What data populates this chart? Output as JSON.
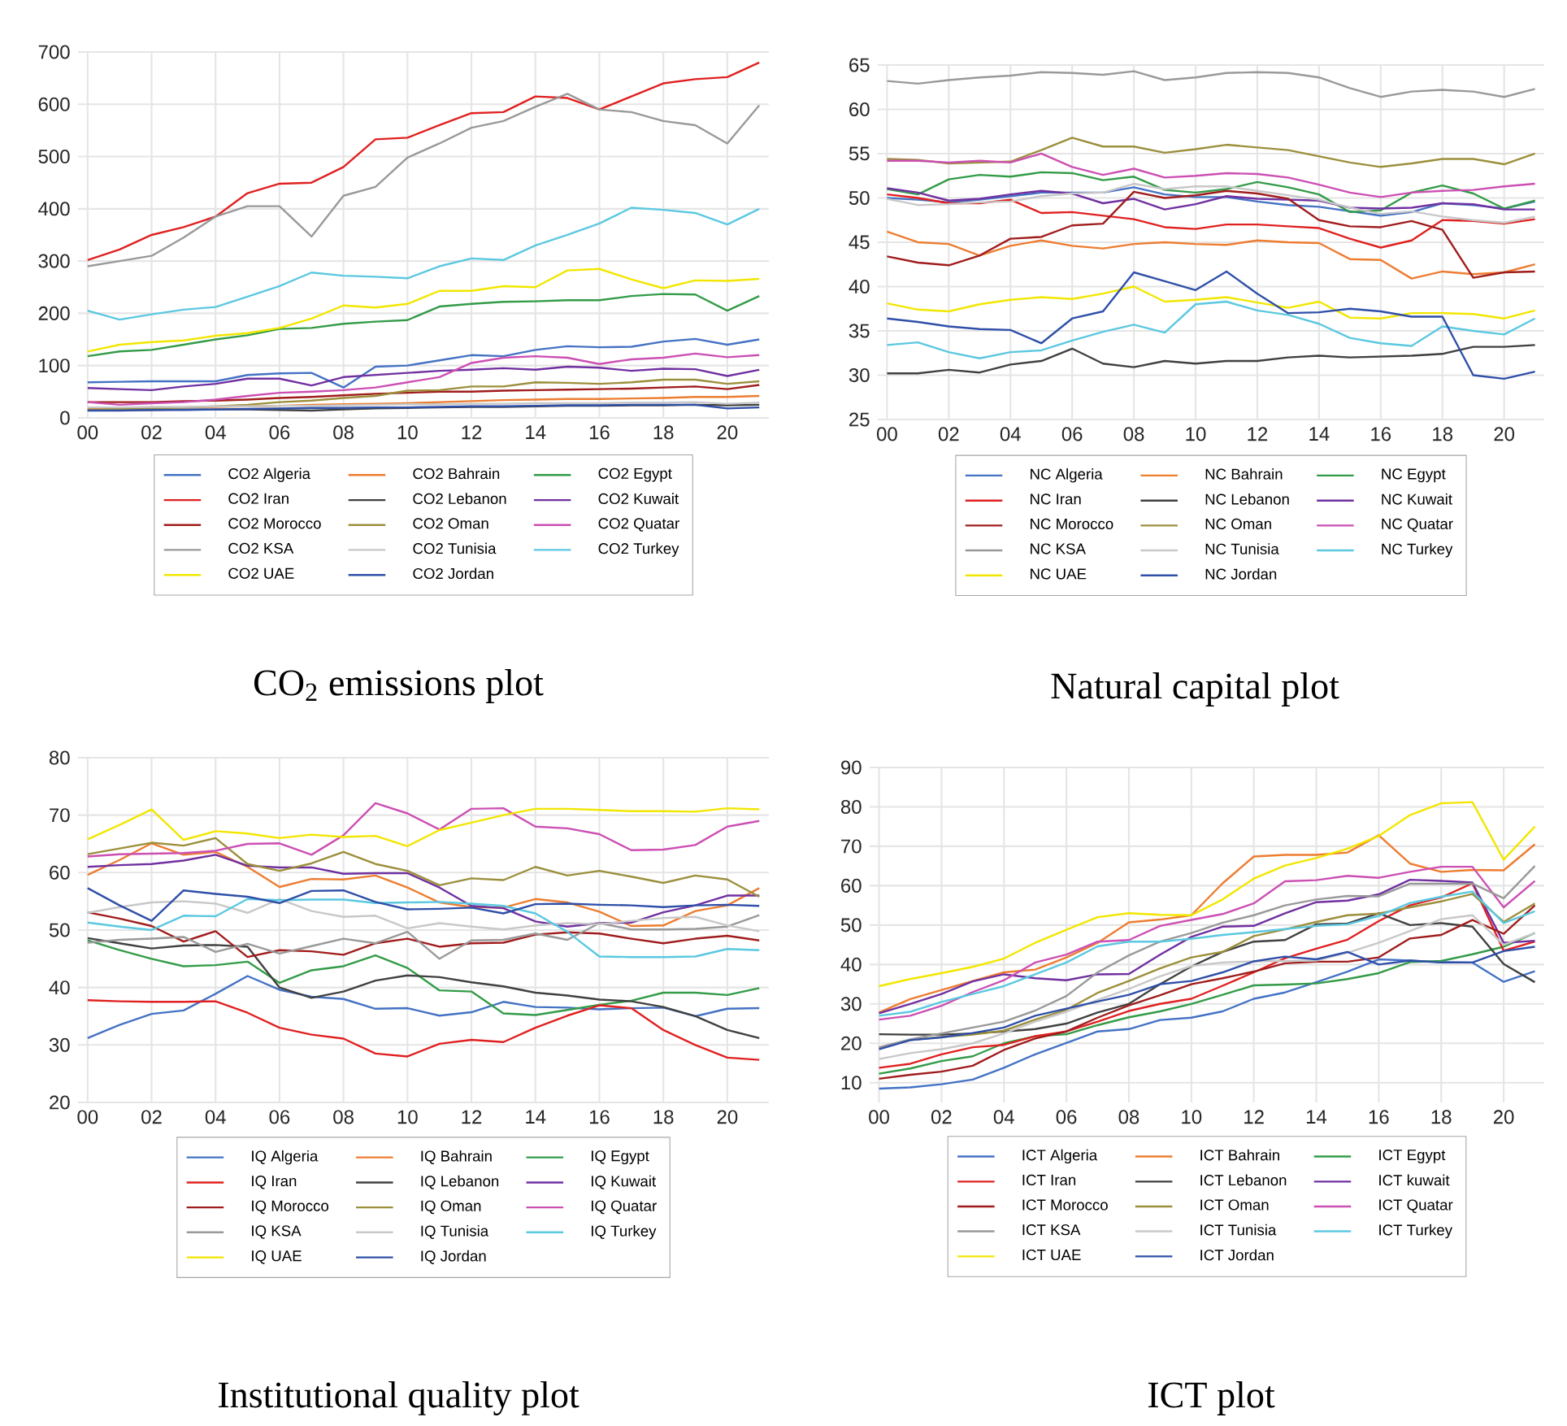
{
  "chart_data": [
    {
      "type": "line",
      "title": "CO$_{2}$ emissions plot",
      "categories": [
        "00",
        null,
        "02",
        null,
        "04",
        null,
        "06",
        null,
        "08",
        null,
        "10",
        null,
        "12",
        null,
        "14",
        null,
        "16",
        null,
        "18",
        null,
        "20",
        null
      ],
      "ylim": [
        0,
        700
      ],
      "yticks": [
        0,
        100,
        200,
        300,
        400,
        500,
        600,
        700
      ],
      "grid": true,
      "legend": "bottom",
      "series": [
        {
          "name": "CO2 Algeria",
          "color": "#4472c4",
          "values": [
            68,
            69,
            70,
            70,
            70,
            82,
            85,
            86,
            58,
            98,
            100,
            110,
            120,
            118,
            130,
            137,
            135,
            136,
            146,
            151,
            140,
            150
          ]
        },
        {
          "name": "CO2 Bahrain",
          "color": "#ed7d31",
          "values": [
            18,
            18,
            19,
            20,
            21,
            22,
            23,
            25,
            26,
            27,
            28,
            30,
            32,
            34,
            35,
            36,
            36,
            37,
            38,
            40,
            40,
            42
          ]
        },
        {
          "name": "CO2 Egypt",
          "color": "#339b48",
          "values": [
            118,
            127,
            130,
            140,
            150,
            158,
            170,
            172,
            180,
            184,
            187,
            213,
            218,
            222,
            223,
            225,
            225,
            233,
            237,
            236,
            205,
            233
          ]
        },
        {
          "name": "CO2 Iran",
          "color": "#e02020",
          "values": [
            302,
            322,
            350,
            365,
            385,
            430,
            448,
            450,
            480,
            533,
            536,
            560,
            583,
            585,
            615,
            612,
            590,
            615,
            640,
            648,
            652,
            680
          ]
        },
        {
          "name": "CO2 Lebanon",
          "color": "#404040",
          "values": [
            15,
            15,
            15,
            16,
            16,
            16,
            15,
            14,
            16,
            18,
            19,
            20,
            21,
            21,
            22,
            23,
            23,
            24,
            24,
            25,
            24,
            25
          ]
        },
        {
          "name": "CO2 Kuwait",
          "color": "#7030a0",
          "values": [
            57,
            55,
            53,
            60,
            65,
            75,
            75,
            62,
            78,
            82,
            86,
            90,
            92,
            95,
            92,
            98,
            96,
            90,
            94,
            93,
            80,
            92
          ]
        },
        {
          "name": "CO2 Morocco",
          "color": "#a01c1c",
          "values": [
            30,
            30,
            30,
            32,
            33,
            35,
            38,
            40,
            43,
            46,
            48,
            50,
            50,
            52,
            53,
            54,
            55,
            56,
            58,
            60,
            55,
            63
          ]
        },
        {
          "name": "CO2 Oman",
          "color": "#9c8f3c",
          "values": [
            15,
            17,
            18,
            20,
            22,
            25,
            30,
            33,
            38,
            42,
            52,
            53,
            60,
            60,
            68,
            67,
            65,
            68,
            73,
            73,
            65,
            70
          ]
        },
        {
          "name": "CO2 Quatar",
          "color": "#cc4fb3",
          "values": [
            30,
            25,
            28,
            30,
            35,
            42,
            48,
            50,
            53,
            58,
            68,
            78,
            105,
            115,
            118,
            115,
            103,
            112,
            115,
            123,
            116,
            120
          ]
        },
        {
          "name": "CO2 KSA",
          "color": "#999999",
          "values": [
            290,
            300,
            310,
            345,
            385,
            405,
            405,
            347,
            425,
            442,
            498,
            525,
            555,
            568,
            595,
            620,
            590,
            585,
            568,
            560,
            525,
            598
          ]
        },
        {
          "name": "CO2 Tunisia",
          "color": "#c8c8c8",
          "values": [
            20,
            20,
            21,
            21,
            22,
            22,
            23,
            23,
            24,
            25,
            26,
            26,
            27,
            27,
            28,
            28,
            28,
            29,
            29,
            30,
            27,
            29
          ]
        },
        {
          "name": "CO2 Turkey",
          "color": "#5bc8e0",
          "values": [
            205,
            188,
            198,
            207,
            212,
            232,
            252,
            278,
            272,
            270,
            267,
            290,
            305,
            302,
            330,
            350,
            372,
            402,
            398,
            392,
            370,
            400
          ]
        },
        {
          "name": "CO2 UAE",
          "color": "#f2e600",
          "values": [
            127,
            140,
            145,
            148,
            157,
            162,
            172,
            190,
            215,
            211,
            218,
            243,
            243,
            252,
            250,
            282,
            285,
            265,
            248,
            263,
            262,
            266
          ]
        },
        {
          "name": "CO2 Jordan",
          "color": "#2f4fa8",
          "values": [
            14,
            14,
            15,
            15,
            16,
            17,
            18,
            19,
            19,
            20,
            20,
            21,
            22,
            22,
            23,
            24,
            24,
            25,
            25,
            25,
            18,
            20
          ]
        }
      ]
    },
    {
      "type": "line",
      "title": "Natural capital plot",
      "categories": [
        "00",
        null,
        "02",
        null,
        "04",
        null,
        "06",
        null,
        "08",
        null,
        "10",
        null,
        "12",
        null,
        "14",
        null,
        "16",
        null,
        "18",
        null,
        "20",
        null
      ],
      "ylim": [
        25,
        65
      ],
      "yticks": [
        25,
        30,
        35,
        40,
        45,
        50,
        55,
        60,
        65
      ],
      "grid": true,
      "legend": "bottom",
      "series": [
        {
          "name": "NC Algeria",
          "color": "#4472c4",
          "values": [
            50,
            49.8,
            49.5,
            49.8,
            50.2,
            50.6,
            50.6,
            50.6,
            51.2,
            50.4,
            50.1,
            50.1,
            49.6,
            49.2,
            49,
            48.5,
            48,
            48.4,
            49.4,
            49.2,
            48.8,
            49.6
          ]
        },
        {
          "name": "NC Bahrain",
          "color": "#ed7d31",
          "values": [
            46.2,
            45,
            44.8,
            43.5,
            44.6,
            45.2,
            44.6,
            44.3,
            44.8,
            45,
            44.8,
            44.7,
            45.2,
            45,
            44.9,
            43.1,
            43,
            40.9,
            41.7,
            41.4,
            41.6,
            42.5
          ]
        },
        {
          "name": "NC Egypt",
          "color": "#339b48",
          "values": [
            51,
            50.4,
            52.1,
            52.6,
            52.4,
            52.9,
            52.8,
            52,
            52.4,
            50.9,
            50.6,
            51,
            51.8,
            51.2,
            50.4,
            48.4,
            48.6,
            50.6,
            51.4,
            50.5,
            48.8,
            49.7
          ]
        },
        {
          "name": "NC Iran",
          "color": "#e02020",
          "values": [
            50.4,
            50,
            49.4,
            49.4,
            49.8,
            48.3,
            48.4,
            48,
            47.6,
            46.7,
            46.5,
            47,
            47,
            46.8,
            46.6,
            45.4,
            44.4,
            45.2,
            47.5,
            47.4,
            47.1,
            47.6
          ]
        },
        {
          "name": "NC Lebanon",
          "color": "#404040",
          "values": [
            30.2,
            30.2,
            30.6,
            30.3,
            31.2,
            31.6,
            33,
            31.3,
            30.9,
            31.6,
            31.3,
            31.6,
            31.6,
            32,
            32.2,
            32,
            32.1,
            32.2,
            32.4,
            33.2,
            33.2,
            33.4
          ]
        },
        {
          "name": "NC Kuwait",
          "color": "#7030a0",
          "values": [
            51.1,
            50.6,
            49.7,
            49.9,
            50.4,
            50.8,
            50.5,
            49.4,
            49.9,
            48.7,
            49.3,
            50.2,
            49.9,
            49.8,
            49.7,
            48.9,
            48.8,
            48.9,
            49.4,
            49.3,
            48.7,
            48.7
          ]
        },
        {
          "name": "NC Morocco",
          "color": "#a01c1c",
          "values": [
            43.4,
            42.7,
            42.4,
            43.5,
            45.4,
            45.6,
            46.9,
            47.1,
            50.7,
            50,
            50.3,
            50.8,
            50.5,
            49.9,
            47.5,
            46.8,
            46.7,
            47.4,
            46.4,
            41,
            41.6,
            41.7
          ]
        },
        {
          "name": "NC Oman",
          "color": "#9c8f3c",
          "values": [
            54.4,
            54.3,
            53.9,
            54,
            54.1,
            55.4,
            56.8,
            55.8,
            55.8,
            55.1,
            55.5,
            56,
            55.7,
            55.4,
            54.7,
            54,
            53.5,
            53.9,
            54.4,
            54.4,
            53.8,
            55
          ]
        },
        {
          "name": "NC Quatar",
          "color": "#cc4fb3",
          "values": [
            54.2,
            54.2,
            54,
            54.2,
            54,
            55,
            53.5,
            52.6,
            53.3,
            52.3,
            52.5,
            52.8,
            52.7,
            52.3,
            51.5,
            50.6,
            50.1,
            50.6,
            50.8,
            50.9,
            51.3,
            51.6
          ]
        },
        {
          "name": "NC KSA",
          "color": "#999999",
          "values": [
            63.2,
            62.9,
            63.3,
            63.6,
            63.8,
            64.2,
            64.1,
            63.9,
            64.3,
            63.3,
            63.6,
            64.1,
            64.2,
            64.1,
            63.6,
            62.4,
            61.4,
            62,
            62.2,
            62,
            61.4,
            62.3
          ]
        },
        {
          "name": "NC Tunisia",
          "color": "#c8c8c8",
          "values": [
            49.9,
            49.2,
            49.3,
            49.5,
            49.6,
            50.2,
            50.5,
            50.6,
            51.6,
            51,
            51.3,
            51.3,
            50.8,
            50.3,
            49.8,
            48.9,
            48.2,
            48.5,
            47.9,
            47.5,
            47.2,
            47.9
          ]
        },
        {
          "name": "NC Turkey",
          "color": "#5bc8e0",
          "values": [
            33.4,
            33.7,
            32.6,
            31.9,
            32.6,
            32.8,
            33.9,
            34.9,
            35.7,
            34.8,
            38,
            38.3,
            37.3,
            36.8,
            35.8,
            34.2,
            33.6,
            33.3,
            35.5,
            35,
            34.6,
            36.4
          ]
        },
        {
          "name": "NC UAE",
          "color": "#f2e600",
          "values": [
            38.1,
            37.4,
            37.2,
            38,
            38.5,
            38.8,
            38.6,
            39.2,
            40,
            38.3,
            38.5,
            38.8,
            38.2,
            37.6,
            38.3,
            36.5,
            36.4,
            37,
            37,
            36.9,
            36.4,
            37.3
          ]
        },
        {
          "name": "NC Jordan",
          "color": "#2f4fa8",
          "values": [
            36.4,
            36,
            35.5,
            35.2,
            35.1,
            33.6,
            36.4,
            37.2,
            41.6,
            40.6,
            39.6,
            41.7,
            39.2,
            37,
            37.1,
            37.5,
            37.2,
            36.6,
            36.6,
            30,
            29.6,
            30.4
          ]
        }
      ]
    },
    {
      "type": "line",
      "title": "Institutional quality plot",
      "categories": [
        "00",
        null,
        "02",
        null,
        "04",
        null,
        "06",
        null,
        "08",
        null,
        "10",
        null,
        "12",
        null,
        "14",
        null,
        "16",
        null,
        "18",
        null,
        "20",
        null
      ],
      "ylim": [
        20,
        80
      ],
      "yticks": [
        20,
        30,
        40,
        50,
        60,
        70,
        80
      ],
      "grid": true,
      "legend": "bottom",
      "series": [
        {
          "name": "IQ Algeria",
          "color": "#4472c4",
          "values": [
            31.2,
            33.5,
            35.4,
            36,
            38.9,
            42,
            39.6,
            38.4,
            38,
            36.3,
            36.4,
            35.1,
            35.7,
            37.5,
            36.6,
            36.5,
            36.2,
            36.4,
            36.5,
            35,
            36.3,
            36.4
          ]
        },
        {
          "name": "IQ Bahrain",
          "color": "#ed7d31",
          "values": [
            59.6,
            62.2,
            65.1,
            63.1,
            63.6,
            61,
            57.5,
            58.9,
            58.8,
            59.5,
            57.4,
            54.8,
            54,
            53.9,
            55.4,
            54.8,
            53.2,
            50.7,
            50.8,
            53.3,
            54.3,
            57.3
          ]
        },
        {
          "name": "IQ Egypt",
          "color": "#339b48",
          "values": [
            48.2,
            46.5,
            45,
            43.7,
            43.9,
            44.5,
            40.8,
            43,
            43.7,
            45.6,
            43.4,
            39.5,
            39.3,
            35.5,
            35.2,
            36.1,
            37,
            37.7,
            39.1,
            39.1,
            38.7,
            39.9
          ]
        },
        {
          "name": "IQ Iran",
          "color": "#e02020",
          "values": [
            37.8,
            37.6,
            37.5,
            37.5,
            37.6,
            35.6,
            33,
            31.8,
            31.1,
            28.5,
            28,
            30.2,
            30.9,
            30.5,
            33,
            35.1,
            36.9,
            36.4,
            32.6,
            30,
            27.8,
            27.4
          ]
        },
        {
          "name": "IQ Lebanon",
          "color": "#404040",
          "values": [
            48.6,
            47.7,
            46.8,
            47.3,
            47.4,
            47.1,
            40,
            38.2,
            39.3,
            41.2,
            42.1,
            41.8,
            40.9,
            40.2,
            39.1,
            38.6,
            37.9,
            37.6,
            36.6,
            35,
            32.6,
            31.2
          ]
        },
        {
          "name": "IQ Kuwait",
          "color": "#7030a0",
          "values": [
            61,
            61.3,
            61.5,
            62.1,
            63.1,
            61.2,
            60.9,
            60.9,
            59.8,
            59.9,
            59.9,
            57.4,
            54.2,
            53.8,
            51.5,
            50.6,
            51.2,
            51.3,
            53.1,
            54.3,
            56,
            56
          ]
        },
        {
          "name": "IQ Morocco",
          "color": "#a01c1c",
          "values": [
            53.1,
            52,
            50.7,
            48,
            49.8,
            45.3,
            46.5,
            46.3,
            45.7,
            47.7,
            48.5,
            47.1,
            47.7,
            47.8,
            49.2,
            49.6,
            49.4,
            48.5,
            47.7,
            48.5,
            49,
            48.2
          ]
        },
        {
          "name": "IQ Oman",
          "color": "#9c8f3c",
          "values": [
            63.2,
            64.2,
            65.2,
            64.7,
            66,
            61.5,
            60.3,
            61.6,
            63.6,
            61.5,
            60.3,
            57.8,
            59,
            58.7,
            61,
            59.5,
            60.3,
            59.3,
            58.2,
            59.5,
            58.8,
            55.8
          ]
        },
        {
          "name": "IQ Quatar",
          "color": "#cc4fb3",
          "values": [
            62.8,
            63.2,
            63.3,
            63.4,
            63.8,
            65,
            65.1,
            63.1,
            66.5,
            72.1,
            70.3,
            67.5,
            71.1,
            71.2,
            68,
            67.7,
            66.7,
            63.9,
            64,
            64.8,
            68,
            69
          ]
        },
        {
          "name": "IQ KSA",
          "color": "#999999",
          "values": [
            47.8,
            48.3,
            48.5,
            48.8,
            46.2,
            47.6,
            45.9,
            47.2,
            48.5,
            47.7,
            49.7,
            45,
            48.2,
            48.3,
            49.4,
            48.3,
            51.2,
            50.1,
            50.1,
            50.2,
            50.6,
            52.6
          ]
        },
        {
          "name": "IQ Tunisia",
          "color": "#c8c8c8",
          "values": [
            53,
            54,
            54.8,
            55,
            54.6,
            53,
            55.4,
            53.3,
            52.3,
            52.5,
            50.3,
            51.2,
            50.6,
            50.1,
            50.8,
            51.2,
            51,
            51.6,
            52.1,
            52.3,
            50.8,
            49.8
          ]
        },
        {
          "name": "IQ Turkey",
          "color": "#5bc8e0",
          "values": [
            51.3,
            50.6,
            50,
            52.5,
            52.4,
            55.4,
            55.2,
            55.3,
            55.3,
            54.7,
            54.8,
            54.9,
            54.6,
            54.2,
            52.9,
            49.7,
            45.4,
            45.3,
            45.3,
            45.4,
            46.7,
            46.5
          ]
        },
        {
          "name": "IQ UAE",
          "color": "#f2e600",
          "values": [
            65.8,
            68.3,
            71,
            65.7,
            67.2,
            66.8,
            66,
            66.6,
            66.2,
            66.4,
            64.6,
            67.4,
            68.7,
            70,
            71.1,
            71.1,
            70.9,
            70.7,
            70.7,
            70.6,
            71.2,
            71
          ]
        },
        {
          "name": "IQ Jordan",
          "color": "#2f4fa8",
          "values": [
            57.3,
            54.3,
            51.6,
            56.9,
            56.3,
            55.8,
            54.7,
            56.8,
            56.9,
            54.9,
            53.6,
            53.7,
            53.9,
            52.9,
            54.5,
            54.6,
            54.4,
            54.3,
            54,
            54.3,
            54.4,
            54.2
          ]
        }
      ]
    },
    {
      "type": "line",
      "title": "ICT plot",
      "categories": [
        "00",
        null,
        "02",
        null,
        "04",
        null,
        "06",
        null,
        "08",
        null,
        "10",
        null,
        "12",
        null,
        "14",
        null,
        "16",
        null,
        "18",
        null,
        "20",
        null
      ],
      "ylim": [
        5,
        90
      ],
      "yticks": [
        10,
        20,
        30,
        40,
        50,
        60,
        70,
        80,
        90
      ],
      "grid": true,
      "legend": "bottom",
      "series": [
        {
          "name": "ICT Algeria",
          "color": "#4472c4",
          "values": [
            8.5,
            8.8,
            9.6,
            10.8,
            13.8,
            17.2,
            20.1,
            23,
            23.6,
            25.9,
            26.5,
            28.1,
            31.3,
            32.9,
            35.5,
            38.2,
            41.3,
            41,
            40.6,
            40.5,
            35.6,
            38.3
          ]
        },
        {
          "name": "ICT Bahrain",
          "color": "#ed7d31",
          "values": [
            27.8,
            31.2,
            33.5,
            35.8,
            38,
            38.7,
            41.8,
            45.5,
            50.7,
            51.4,
            52.5,
            60.6,
            67.4,
            67.8,
            67.8,
            68.4,
            72.8,
            65.6,
            63.5,
            64,
            63.9,
            70.5
          ]
        },
        {
          "name": "ICT Egypt",
          "color": "#339b48",
          "values": [
            12.3,
            13.6,
            15.5,
            16.7,
            20,
            21.8,
            22.3,
            24.6,
            26.6,
            28.1,
            30,
            32.3,
            34.7,
            34.9,
            35.2,
            36.3,
            37.8,
            40.6,
            40.9,
            42.6,
            44.5,
            48
          ]
        },
        {
          "name": "ICT Iran",
          "color": "#e02020",
          "values": [
            13.8,
            14.8,
            17.2,
            19,
            19.6,
            21.8,
            23,
            25.5,
            28.2,
            30,
            31.3,
            34.6,
            38,
            41.6,
            44,
            46.3,
            51,
            55,
            57,
            60.6,
            43.5,
            45.8
          ]
        },
        {
          "name": "ICT Lebanon",
          "color": "#404040",
          "values": [
            22.3,
            22.2,
            22.2,
            22.5,
            23,
            23.6,
            25,
            27.8,
            30,
            35,
            39.5,
            43.2,
            45.8,
            46.2,
            50.2,
            50.4,
            53,
            50,
            50.5,
            49.6,
            40.1,
            35.5
          ]
        },
        {
          "name": "ICT kuwait",
          "color": "#7030a0",
          "values": [
            27.6,
            30,
            32.5,
            35.7,
            37.5,
            36.5,
            36,
            37.5,
            37.6,
            42.5,
            47,
            49.6,
            49.8,
            53,
            55.8,
            56.2,
            57.8,
            61.5,
            61.2,
            60.8,
            45.5,
            46
          ]
        },
        {
          "name": "ICT Morocco",
          "color": "#a01c1c",
          "values": [
            11,
            12,
            12.8,
            14.3,
            18.3,
            21.2,
            23,
            26.5,
            29.6,
            32.2,
            35,
            36.5,
            38.2,
            40.3,
            40.7,
            40.7,
            41.8,
            46.6,
            47.5,
            51.3,
            47.8,
            55
          ]
        },
        {
          "name": "ICT Oman",
          "color": "#9c8f3c",
          "values": [
            18.8,
            20.8,
            21.6,
            22.2,
            23.2,
            26,
            28.5,
            32.8,
            35.8,
            39,
            41.8,
            43.2,
            47.2,
            48.9,
            50.8,
            52.5,
            52.9,
            54.5,
            56,
            57.9,
            50.8,
            55.5
          ]
        },
        {
          "name": "ICT Quatar",
          "color": "#cc4fb3",
          "values": [
            26,
            27,
            29.5,
            33,
            36,
            40.5,
            42.5,
            45.8,
            46.2,
            49.8,
            51.3,
            52.8,
            55.5,
            61.1,
            61.4,
            62.5,
            62,
            63.5,
            64.8,
            64.8,
            54.5,
            61.2
          ]
        },
        {
          "name": "ICT KSA",
          "color": "#999999",
          "values": [
            19,
            21,
            22.5,
            24,
            25.5,
            28.3,
            32,
            38,
            42.3,
            45.8,
            48,
            50.6,
            52.5,
            55,
            56.5,
            57.4,
            57.3,
            60.5,
            60.5,
            60.5,
            56.8,
            65
          ]
        },
        {
          "name": "ICT Tunisia",
          "color": "#c8c8c8",
          "values": [
            16,
            17.5,
            18.5,
            20,
            22.5,
            25.5,
            28,
            31,
            33.8,
            37,
            39.6,
            40.5,
            40.8,
            40.9,
            41,
            43,
            45.5,
            48.5,
            51.5,
            52.5,
            45,
            48
          ]
        },
        {
          "name": "ICT Turkey",
          "color": "#5bc8e0",
          "values": [
            27,
            28,
            30.5,
            32.5,
            34.5,
            37.5,
            40.5,
            44.6,
            45.8,
            45.8,
            46.5,
            47.5,
            48.2,
            49,
            49.8,
            50.2,
            52.3,
            55.6,
            57.2,
            58.5,
            50.5,
            53.5
          ]
        },
        {
          "name": "ICT UAE",
          "color": "#f2e600",
          "values": [
            34.5,
            36.3,
            37.8,
            39.4,
            41.5,
            45.5,
            48.8,
            52,
            53,
            52.6,
            52.5,
            56.5,
            61.8,
            65.1,
            67,
            69.4,
            72.6,
            77.9,
            80.9,
            81.2,
            66.6,
            75
          ]
        },
        {
          "name": "ICT Jordan",
          "color": "#2f4fa8",
          "values": [
            18.5,
            20.8,
            21.5,
            22.6,
            24,
            27,
            28.8,
            30.6,
            32.3,
            35,
            35.8,
            38,
            40.8,
            42,
            41.3,
            43.2,
            40,
            41,
            40.5,
            40.5,
            43.4,
            44.5
          ]
        }
      ]
    }
  ]
}
